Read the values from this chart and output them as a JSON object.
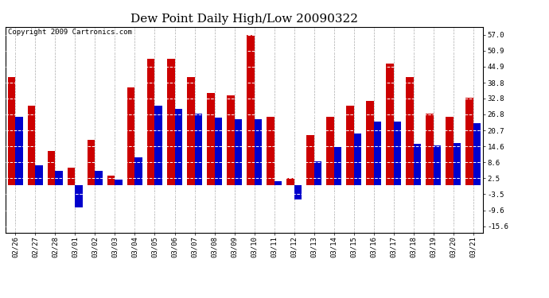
{
  "title": "Dew Point Daily High/Low 20090322",
  "copyright": "Copyright 2009 Cartronics.com",
  "dates": [
    "02/26",
    "02/27",
    "02/28",
    "03/01",
    "03/02",
    "03/03",
    "03/04",
    "03/05",
    "03/06",
    "03/07",
    "03/08",
    "03/09",
    "03/10",
    "03/11",
    "03/12",
    "03/13",
    "03/14",
    "03/15",
    "03/16",
    "03/17",
    "03/18",
    "03/19",
    "03/20",
    "03/21"
  ],
  "highs": [
    41.0,
    30.0,
    13.0,
    6.5,
    17.0,
    3.5,
    37.0,
    48.0,
    48.0,
    41.0,
    35.0,
    34.0,
    57.0,
    26.0,
    2.5,
    19.0,
    26.0,
    30.0,
    32.0,
    46.0,
    41.0,
    27.0,
    26.0,
    33.0
  ],
  "lows": [
    26.0,
    7.5,
    5.5,
    -8.5,
    5.5,
    2.0,
    10.5,
    30.0,
    29.0,
    27.0,
    25.5,
    25.0,
    25.0,
    1.5,
    -5.5,
    9.0,
    14.5,
    19.5,
    24.0,
    24.0,
    15.5,
    15.0,
    16.0,
    23.5
  ],
  "high_color": "#cc0000",
  "low_color": "#0000cc",
  "background_color": "#ffffff",
  "plot_background": "#ffffff",
  "grid_color": "#aaaaaa",
  "yticks": [
    -15.6,
    -9.6,
    -3.5,
    2.5,
    8.6,
    14.6,
    20.7,
    26.8,
    32.8,
    38.8,
    44.9,
    50.9,
    57.0
  ],
  "ytick_labels": [
    "-15.6",
    "-9.6",
    "-3.5",
    "2.5",
    "8.6",
    "14.6",
    "20.7",
    "26.8",
    "32.8",
    "38.8",
    "44.9",
    "50.9",
    "57.0"
  ],
  "ymin": -18.0,
  "ymax": 60.0,
  "bar_width": 0.38,
  "title_fontsize": 11,
  "tick_fontsize": 6.5,
  "copyright_fontsize": 6.5
}
